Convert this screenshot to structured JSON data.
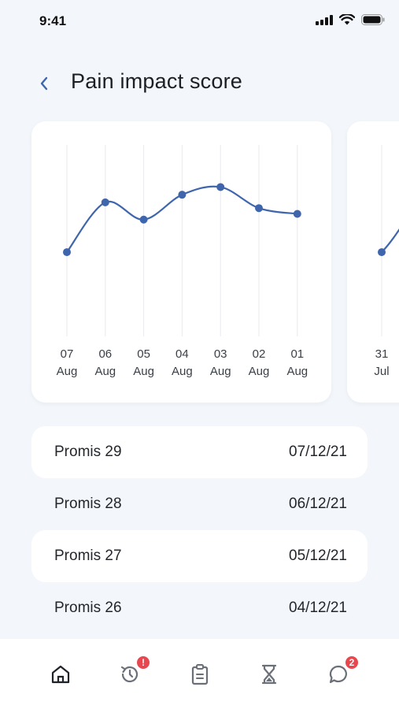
{
  "status_bar": {
    "time": "9:41"
  },
  "header": {
    "title": "Pain impact score"
  },
  "chart_data": {
    "type": "line",
    "title": "",
    "xlabel": "",
    "ylabel": "",
    "categories": [
      "07 Aug",
      "06 Aug",
      "05 Aug",
      "04 Aug",
      "03 Aug",
      "02 Aug",
      "01 Aug"
    ],
    "tick_day": [
      "07",
      "06",
      "05",
      "04",
      "03",
      "02",
      "01"
    ],
    "tick_month": [
      "Aug",
      "Aug",
      "Aug",
      "Aug",
      "Aug",
      "Aug",
      "Aug"
    ],
    "values": [
      44,
      70,
      61,
      74,
      78,
      67,
      64
    ],
    "ylim": [
      0,
      100
    ],
    "grid": "vertical",
    "line_color": "#3f66ad"
  },
  "next_chart": {
    "tick_day": "31",
    "tick_month": "Jul",
    "value": 44
  },
  "list": [
    {
      "name": "Promis 29",
      "date": "07/12/21"
    },
    {
      "name": "Promis 28",
      "date": "06/12/21"
    },
    {
      "name": "Promis 27",
      "date": "05/12/21"
    },
    {
      "name": "Promis 26",
      "date": "04/12/21"
    }
  ],
  "bottom_nav": {
    "items": [
      {
        "icon": "home-icon"
      },
      {
        "icon": "history-icon",
        "badge": "!"
      },
      {
        "icon": "clipboard-icon"
      },
      {
        "icon": "hourglass-icon"
      },
      {
        "icon": "chat-icon",
        "badge": "2"
      }
    ]
  },
  "colors": {
    "accent": "#3f66ad",
    "badge": "#e9474f",
    "background": "#f3f6fa"
  }
}
